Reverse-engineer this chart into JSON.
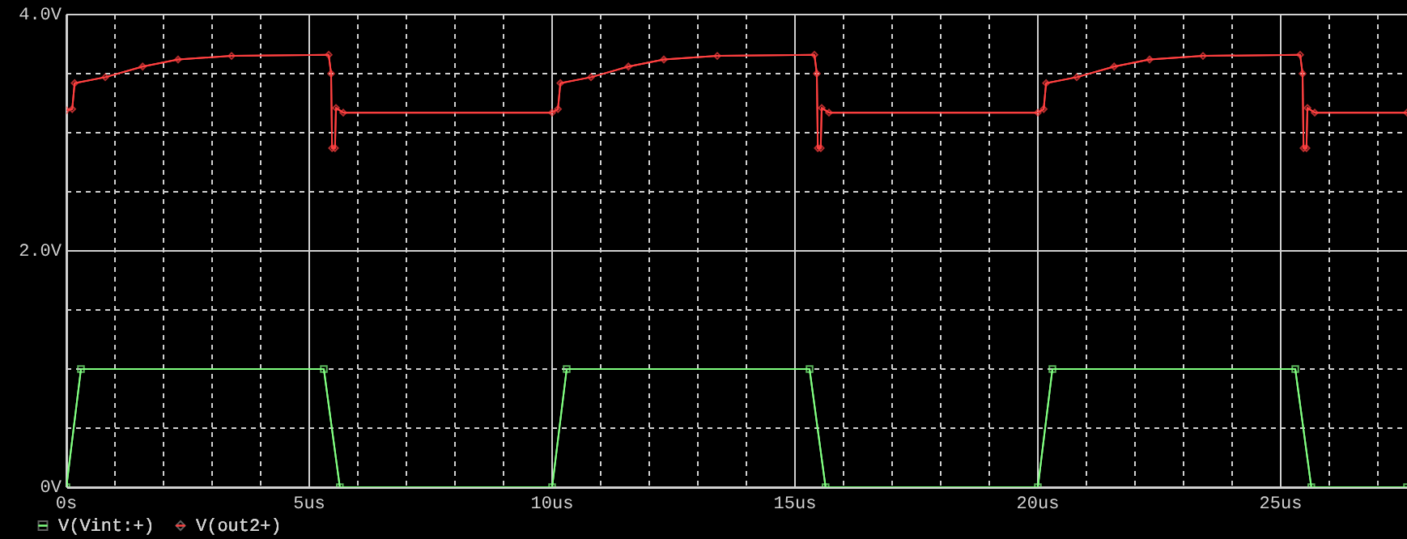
{
  "chart_data": {
    "type": "line",
    "xlim": [
      0,
      27.6
    ],
    "xticks": [
      {
        "value": 0,
        "label": "0s"
      },
      {
        "value": 1,
        "label": null
      },
      {
        "value": 2,
        "label": null
      },
      {
        "value": 3,
        "label": null
      },
      {
        "value": 4,
        "label": null
      },
      {
        "value": 5,
        "label": "5us"
      },
      {
        "value": 6,
        "label": null
      },
      {
        "value": 7,
        "label": null
      },
      {
        "value": 8,
        "label": null
      },
      {
        "value": 9,
        "label": null
      },
      {
        "value": 10,
        "label": "10us"
      },
      {
        "value": 11,
        "label": null
      },
      {
        "value": 12,
        "label": null
      },
      {
        "value": 13,
        "label": null
      },
      {
        "value": 14,
        "label": null
      },
      {
        "value": 15,
        "label": "15us"
      },
      {
        "value": 16,
        "label": null
      },
      {
        "value": 17,
        "label": null
      },
      {
        "value": 18,
        "label": null
      },
      {
        "value": 19,
        "label": null
      },
      {
        "value": 20,
        "label": "20us"
      },
      {
        "value": 21,
        "label": null
      },
      {
        "value": 22,
        "label": null
      },
      {
        "value": 23,
        "label": null
      },
      {
        "value": 24,
        "label": null
      },
      {
        "value": 25,
        "label": "25us"
      },
      {
        "value": 26,
        "label": null
      },
      {
        "value": 27,
        "label": null
      }
    ],
    "ylim": [
      0,
      4.0
    ],
    "yticks": [
      {
        "value": 0,
        "label": "0V"
      },
      {
        "value": 0.5,
        "label": null
      },
      {
        "value": 1.0,
        "label": null
      },
      {
        "value": 1.5,
        "label": null
      },
      {
        "value": 2.0,
        "label": "2.0V"
      },
      {
        "value": 2.5,
        "label": null
      },
      {
        "value": 3.0,
        "label": null
      },
      {
        "value": 3.5,
        "label": null
      },
      {
        "value": 4.0,
        "label": "4.0V"
      }
    ],
    "grid": true,
    "legend": "bottom left",
    "line_style": "solid",
    "series": [
      {
        "name": "V(Vint:+)",
        "color": "#80ff80",
        "marker": "square",
        "x": [
          0,
          0.3,
          5.3,
          5.63,
          10,
          10.3,
          15.3,
          15.63,
          20,
          20.3,
          25.3,
          25.63,
          27.6
        ],
        "values": [
          0,
          1.0,
          1.0,
          0,
          0,
          1.0,
          1.0,
          0,
          0,
          1.0,
          1.0,
          0,
          0
        ]
      },
      {
        "name": "V(out2+)",
        "color": "#ff4040",
        "marker": "diamond",
        "x": [
          0,
          0.12,
          0.17,
          0.8,
          1.57,
          2.3,
          3.4,
          5.4,
          5.45,
          5.47,
          5.53,
          5.55,
          5.7,
          10,
          10.12,
          10.17,
          10.8,
          11.57,
          12.3,
          13.4,
          15.4,
          15.45,
          15.47,
          15.53,
          15.55,
          15.7,
          20,
          20.12,
          20.17,
          20.8,
          21.57,
          22.3,
          23.4,
          25.4,
          25.45,
          25.47,
          25.53,
          25.55,
          25.7,
          27.6
        ],
        "values": [
          3.19,
          3.2,
          3.42,
          3.47,
          3.56,
          3.62,
          3.65,
          3.66,
          3.5,
          2.87,
          2.87,
          3.21,
          3.17,
          3.17,
          3.2,
          3.42,
          3.47,
          3.56,
          3.62,
          3.65,
          3.66,
          3.5,
          2.87,
          2.87,
          3.21,
          3.17,
          3.17,
          3.2,
          3.42,
          3.47,
          3.56,
          3.62,
          3.65,
          3.66,
          3.5,
          2.87,
          2.87,
          3.21,
          3.17,
          3.17
        ]
      }
    ]
  }
}
